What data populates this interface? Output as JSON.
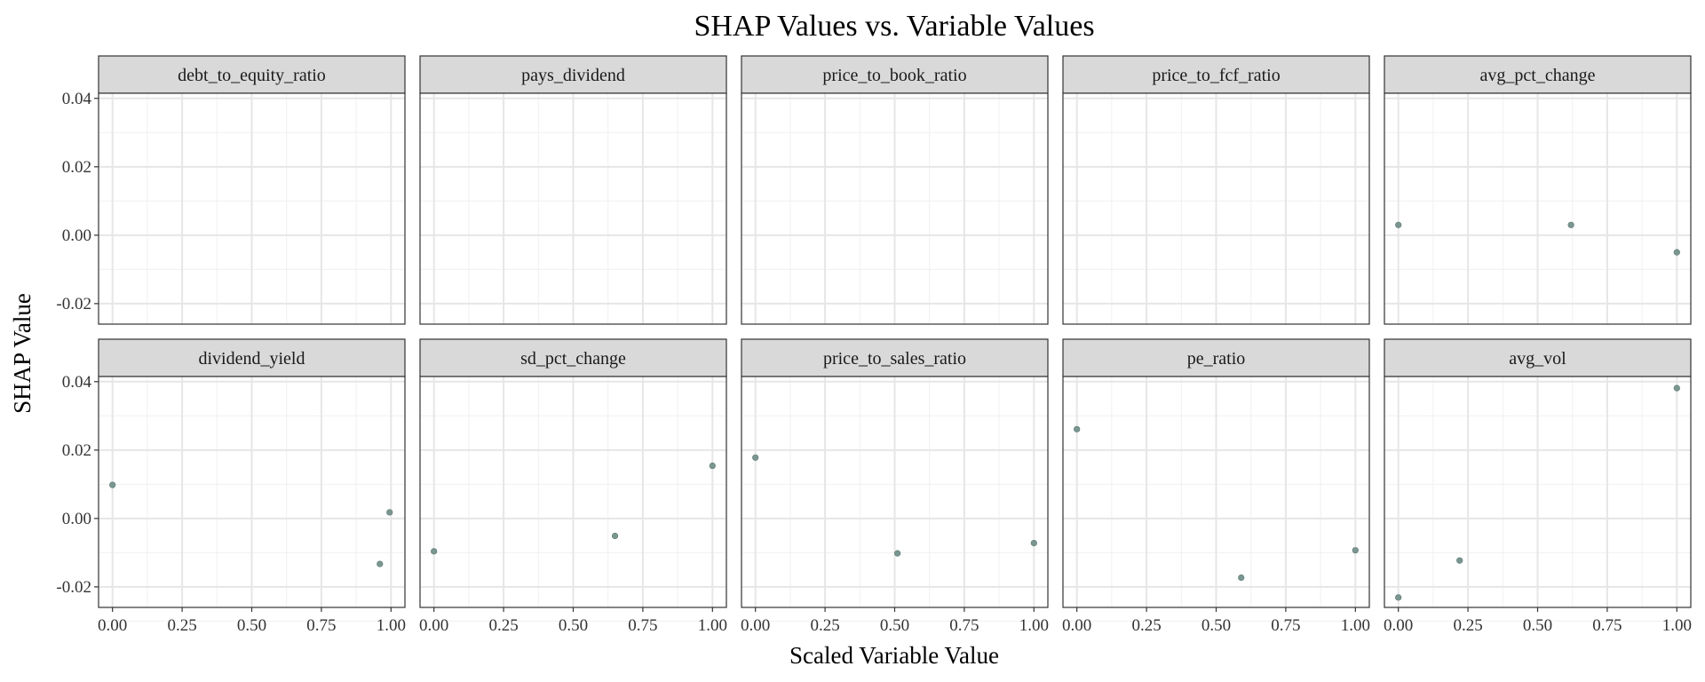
{
  "chart_data": {
    "type": "scatter",
    "title": "SHAP Values vs. Variable Values",
    "xlabel": "Scaled Variable Value",
    "ylabel": "SHAP Value",
    "xlim": [
      -0.05,
      1.05
    ],
    "ylim": [
      -0.026,
      0.0415
    ],
    "x_ticks": [
      0,
      0.25,
      0.5,
      0.75,
      1
    ],
    "x_tick_labels": [
      "0.00",
      "0.25",
      "0.50",
      "0.75",
      "1.00"
    ],
    "y_ticks": [
      -0.02,
      0,
      0.02,
      0.04
    ],
    "y_tick_labels": [
      "-0.02",
      "0.00",
      "0.02",
      "0.04"
    ],
    "grid": true,
    "point_color": "#7a9690",
    "panels": [
      {
        "name": "debt_to_equity_ratio",
        "points": []
      },
      {
        "name": "pays_dividend",
        "points": []
      },
      {
        "name": "price_to_book_ratio",
        "points": []
      },
      {
        "name": "price_to_fcf_ratio",
        "points": []
      },
      {
        "name": "avg_pct_change",
        "points": [
          [
            0.0,
            0.003
          ],
          [
            0.62,
            0.003
          ],
          [
            1.0,
            -0.005
          ]
        ]
      },
      {
        "name": "dividend_yield",
        "points": [
          [
            0.0,
            0.0098
          ],
          [
            0.96,
            -0.0133
          ],
          [
            0.995,
            0.0018
          ]
        ]
      },
      {
        "name": "sd_pct_change",
        "points": [
          [
            0.0,
            -0.0096
          ],
          [
            0.65,
            -0.0051
          ],
          [
            1.0,
            0.0154
          ]
        ]
      },
      {
        "name": "price_to_sales_ratio",
        "points": [
          [
            0.0,
            0.0178
          ],
          [
            0.51,
            -0.0102
          ],
          [
            1.0,
            -0.0072
          ]
        ]
      },
      {
        "name": "pe_ratio",
        "points": [
          [
            0.0,
            0.0261
          ],
          [
            0.59,
            -0.0173
          ],
          [
            1.0,
            -0.0093
          ]
        ]
      },
      {
        "name": "avg_vol",
        "points": [
          [
            0.0,
            -0.0231
          ],
          [
            0.22,
            -0.0123
          ],
          [
            1.0,
            0.0381
          ]
        ]
      }
    ]
  }
}
